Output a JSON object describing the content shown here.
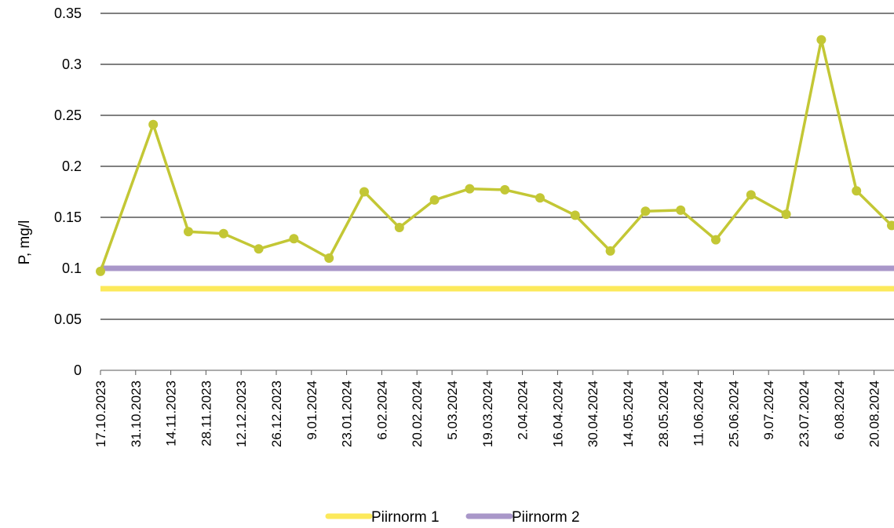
{
  "chart_data": {
    "type": "line",
    "ylabel": "P, mg/l",
    "xlabel": "",
    "ylim": [
      0,
      0.35
    ],
    "yticks": [
      "0",
      "0.05",
      "0.1",
      "0.15",
      "0.2",
      "0.25",
      "0.3",
      "0.35"
    ],
    "grid": true,
    "legend_position": "bottom",
    "x_tick_labels": [
      "17.10.2023",
      "31.10.2023",
      "14.11.2023",
      "28.11.2023",
      "12.12.2023",
      "26.12.2023",
      "9.01.2024",
      "23.01.2024",
      "6.02.2024",
      "20.02.2024",
      "5.03.2024",
      "19.03.2024",
      "2.04.2024",
      "16.04.2024",
      "30.04.2024",
      "14.05.2024",
      "28.05.2024",
      "11.06.2024",
      "25.06.2024",
      "9.07.2024",
      "23.07.2024",
      "6.08.2024",
      "20.08.2024"
    ],
    "series": [
      {
        "color": "#c3c735",
        "marker": "circle",
        "points": [
          {
            "x": "17.10.2023",
            "y": 0.097
          },
          {
            "x": "7.11.2023",
            "y": 0.241
          },
          {
            "x": "21.11.2023",
            "y": 0.136
          },
          {
            "x": "5.12.2023",
            "y": 0.134
          },
          {
            "x": "19.12.2023",
            "y": 0.119
          },
          {
            "x": "2.01.2024",
            "y": 0.129
          },
          {
            "x": "16.01.2024",
            "y": 0.11
          },
          {
            "x": "30.01.2024",
            "y": 0.175
          },
          {
            "x": "13.02.2024",
            "y": 0.14
          },
          {
            "x": "27.02.2024",
            "y": 0.167
          },
          {
            "x": "12.03.2024",
            "y": 0.178
          },
          {
            "x": "26.03.2024",
            "y": 0.177
          },
          {
            "x": "9.04.2024",
            "y": 0.169
          },
          {
            "x": "23.04.2024",
            "y": 0.152
          },
          {
            "x": "7.05.2024",
            "y": 0.117
          },
          {
            "x": "21.05.2024",
            "y": 0.156
          },
          {
            "x": "4.06.2024",
            "y": 0.157
          },
          {
            "x": "18.06.2024",
            "y": 0.128
          },
          {
            "x": "2.07.2024",
            "y": 0.172
          },
          {
            "x": "16.07.2024",
            "y": 0.153
          },
          {
            "x": "30.07.2024",
            "y": 0.324
          },
          {
            "x": "13.08.2024",
            "y": 0.176
          },
          {
            "x": "27.08.2024",
            "y": 0.142
          }
        ]
      },
      {
        "name": "Piirnorm 1",
        "color": "#fce95b",
        "constant": 0.08
      },
      {
        "name": "Piirnorm 2",
        "color": "#a997c9",
        "constant": 0.1
      }
    ]
  }
}
